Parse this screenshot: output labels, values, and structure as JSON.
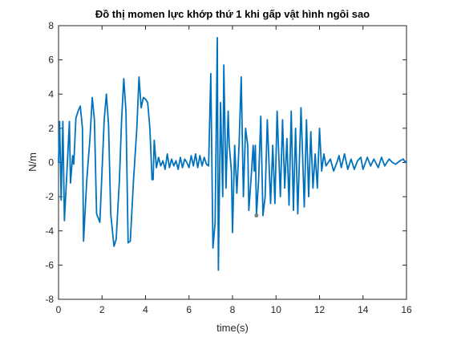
{
  "chart_data": {
    "type": "line",
    "title": "Đồ thị momen lực khớp thứ 1 khi gấp vật hình ngôi sao",
    "xlabel": "time(s)",
    "ylabel": "N/m",
    "xlim": [
      0,
      16
    ],
    "ylim": [
      -8,
      8
    ],
    "xticks": [
      0,
      2,
      4,
      6,
      8,
      10,
      12,
      14,
      16
    ],
    "yticks": [
      -8,
      -6,
      -4,
      -2,
      0,
      2,
      4,
      6,
      8
    ],
    "grid": false,
    "series": [
      {
        "color": "#0072bd",
        "x": [
          0,
          0.05,
          0.12,
          0.2,
          0.27,
          0.4,
          0.5,
          0.55,
          0.65,
          0.7,
          0.8,
          0.9,
          1.0,
          1.1,
          1.15,
          1.3,
          1.45,
          1.55,
          1.65,
          1.75,
          1.9,
          2.0,
          2.1,
          2.2,
          2.3,
          2.4,
          2.55,
          2.65,
          2.8,
          2.9,
          3.0,
          3.1,
          3.2,
          3.3,
          3.45,
          3.6,
          3.7,
          3.8,
          3.9,
          4.0,
          4.1,
          4.2,
          4.3,
          4.35,
          4.4,
          4.5,
          4.6,
          4.7,
          4.8,
          4.9,
          5.0,
          5.1,
          5.2,
          5.3,
          5.4,
          5.5,
          5.6,
          5.7,
          5.8,
          5.9,
          6.0,
          6.1,
          6.2,
          6.3,
          6.4,
          6.5,
          6.6,
          6.7,
          6.8,
          6.9,
          7.0,
          7.1,
          7.2,
          7.3,
          7.35,
          7.45,
          7.55,
          7.6,
          7.7,
          7.8,
          7.85,
          7.95,
          8.0,
          8.1,
          8.2,
          8.3,
          8.4,
          8.5,
          8.6,
          8.7,
          8.75,
          8.85,
          8.95,
          9.0,
          9.05,
          9.1,
          9.2,
          9.3,
          9.4,
          9.5,
          9.6,
          9.75,
          9.85,
          9.95,
          10.05,
          10.2,
          10.3,
          10.4,
          10.5,
          10.6,
          10.7,
          10.8,
          10.9,
          11.0,
          11.15,
          11.3,
          11.4,
          11.5,
          11.6,
          11.7,
          11.8,
          11.9,
          12.0,
          12.1,
          12.2,
          12.3,
          12.5,
          12.65,
          12.8,
          12.9,
          13.0,
          13.15,
          13.3,
          13.45,
          13.6,
          13.75,
          13.9,
          14.0,
          14.2,
          14.35,
          14.5,
          14.7,
          14.85,
          15.0,
          15.2,
          15.35,
          15.5,
          15.7,
          15.85,
          15.95,
          16.0
        ],
        "values": [
          0,
          2.4,
          -2.2,
          2.4,
          -3.4,
          -0.2,
          2.4,
          -1.2,
          0.4,
          -0.1,
          2.6,
          3.0,
          3.3,
          2.0,
          -4.6,
          -1.0,
          1.5,
          3.8,
          2.5,
          -3.0,
          -3.5,
          -0.5,
          2.5,
          4.0,
          2.2,
          -3.0,
          -4.9,
          -4.5,
          -1.0,
          2.5,
          4.9,
          3.0,
          -4.7,
          -4.6,
          -1.0,
          2.0,
          5.0,
          3.2,
          3.8,
          3.7,
          3.5,
          2.0,
          -1.0,
          -1.0,
          1.3,
          -0.3,
          0.3,
          -0.2,
          0.1,
          -0.4,
          0.5,
          -0.3,
          0.2,
          -0.2,
          0.1,
          -0.4,
          0.3,
          -0.3,
          0.2,
          0.0,
          -0.3,
          0.4,
          -0.2,
          0.5,
          -0.3,
          0.4,
          -0.2,
          0.3,
          -0.1,
          -0.2,
          5.2,
          -5.0,
          -3.5,
          7.3,
          -6.3,
          3.5,
          -2.0,
          5.7,
          -1.5,
          3.0,
          1.0,
          -0.5,
          -4.1,
          1.0,
          -1.8,
          1.0,
          5.0,
          -2.0,
          2.0,
          1.0,
          -2.8,
          -1.0,
          1.0,
          -0.5,
          1.0,
          -3.1,
          -1.0,
          2.7,
          -3.1,
          -2.0,
          2.5,
          -2.4,
          1.0,
          -2.4,
          3.0,
          -2.0,
          2.5,
          -1.5,
          1.4,
          -2.5,
          3.0,
          -2.8,
          2.0,
          -3.0,
          3.2,
          -2.6,
          2.5,
          -2.0,
          1.8,
          -1.5,
          0.5,
          -1.5,
          2.0,
          -0.5,
          0.5,
          -0.2,
          0.2,
          -0.5,
          0.0,
          0.4,
          -0.3,
          0.5,
          -0.4,
          0.2,
          -0.4,
          0.1,
          0.3,
          -0.4,
          0.3,
          -0.2,
          0.2,
          -0.3,
          0.3,
          -0.2,
          0.2,
          0.0,
          -0.1,
          0.1,
          0.2,
          0.0,
          0.1
        ]
      }
    ],
    "marker": {
      "x": 9.1,
      "y": -3.1,
      "color": "#808080"
    }
  }
}
